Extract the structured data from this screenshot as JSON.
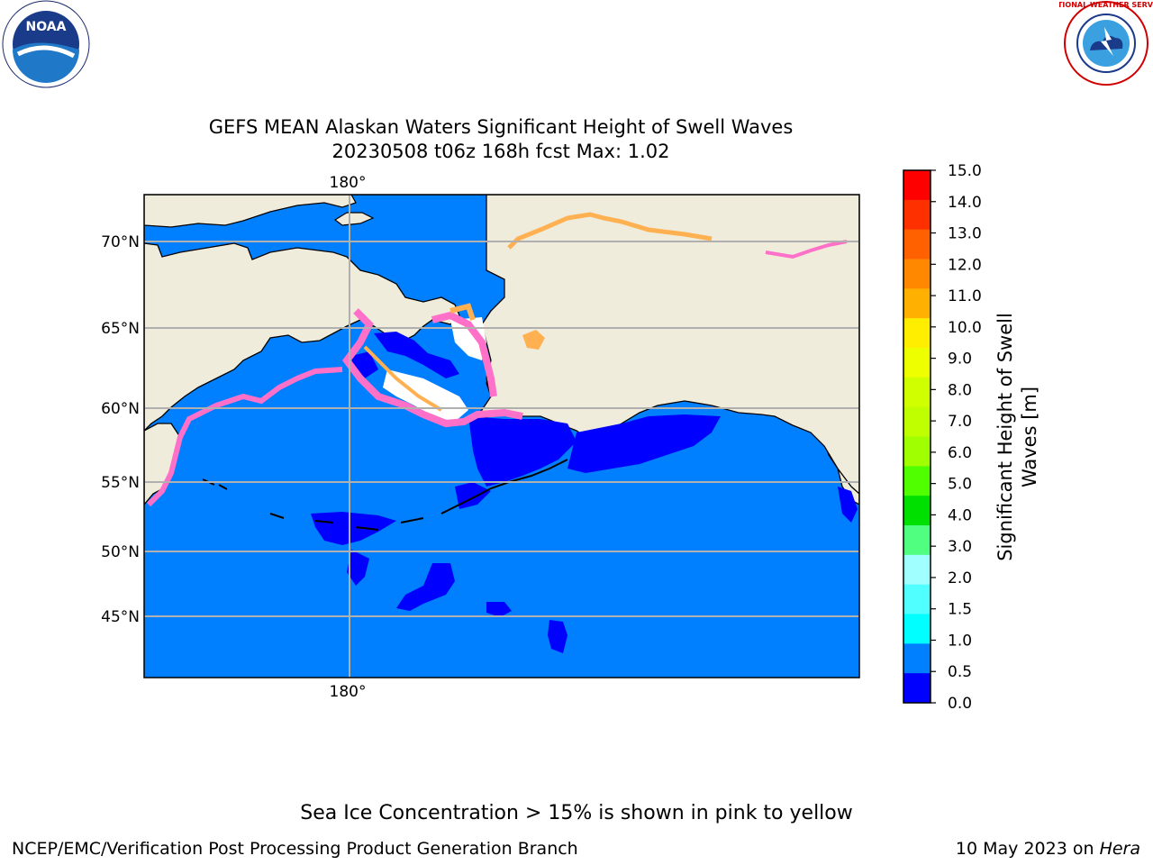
{
  "title": {
    "line1": "GEFS MEAN Alaskan Waters Significant Height of Swell Waves",
    "line2": "20230508 t06z 168h fcst    Max: 1.02"
  },
  "map": {
    "lon_labels": {
      "top": "180°",
      "bottom": "180°"
    },
    "lat_labels": [
      "70°N",
      "65°N",
      "60°N",
      "55°N",
      "50°N",
      "45°N"
    ],
    "colors": {
      "land": "#efecdc",
      "ocean_low": "#0000ff",
      "ocean_mid": "#0080ff",
      "grid": "#b0b0b0",
      "ice_pink": "#ff70c8",
      "ice_orange": "#ffb050",
      "ice_yellow": "#ffe000"
    }
  },
  "colorbar": {
    "label_line1": "Significant Height of Swell",
    "label_line2": "Waves [m]",
    "ticks": [
      "15.0",
      "14.0",
      "13.0",
      "12.0",
      "11.0",
      "10.0",
      "9.0",
      "8.0",
      "7.0",
      "6.0",
      "5.0",
      "4.0",
      "3.0",
      "2.0",
      "1.5",
      "1.0",
      "0.5",
      "0.0"
    ],
    "colors": [
      "#ff0000",
      "#ff3000",
      "#ff6000",
      "#ff8800",
      "#ffb000",
      "#ffee00",
      "#eeff00",
      "#d0ff00",
      "#c0ff00",
      "#a0ff00",
      "#50ff00",
      "#00e000",
      "#50ff80",
      "#a0ffff",
      "#50ffff",
      "#00ffff",
      "#0080ff",
      "#0000ff"
    ]
  },
  "logos": {
    "noaa_label": "NOAA",
    "nws_label": "NATIONAL WEATHER SERVICE"
  },
  "footer": {
    "note": "Sea Ice Concentration > 15% is shown in pink to yellow",
    "left": "NCEP/EMC/Verification Post Processing Product Generation Branch",
    "right_date": "10 May 2023 on ",
    "right_host": "Hera"
  }
}
